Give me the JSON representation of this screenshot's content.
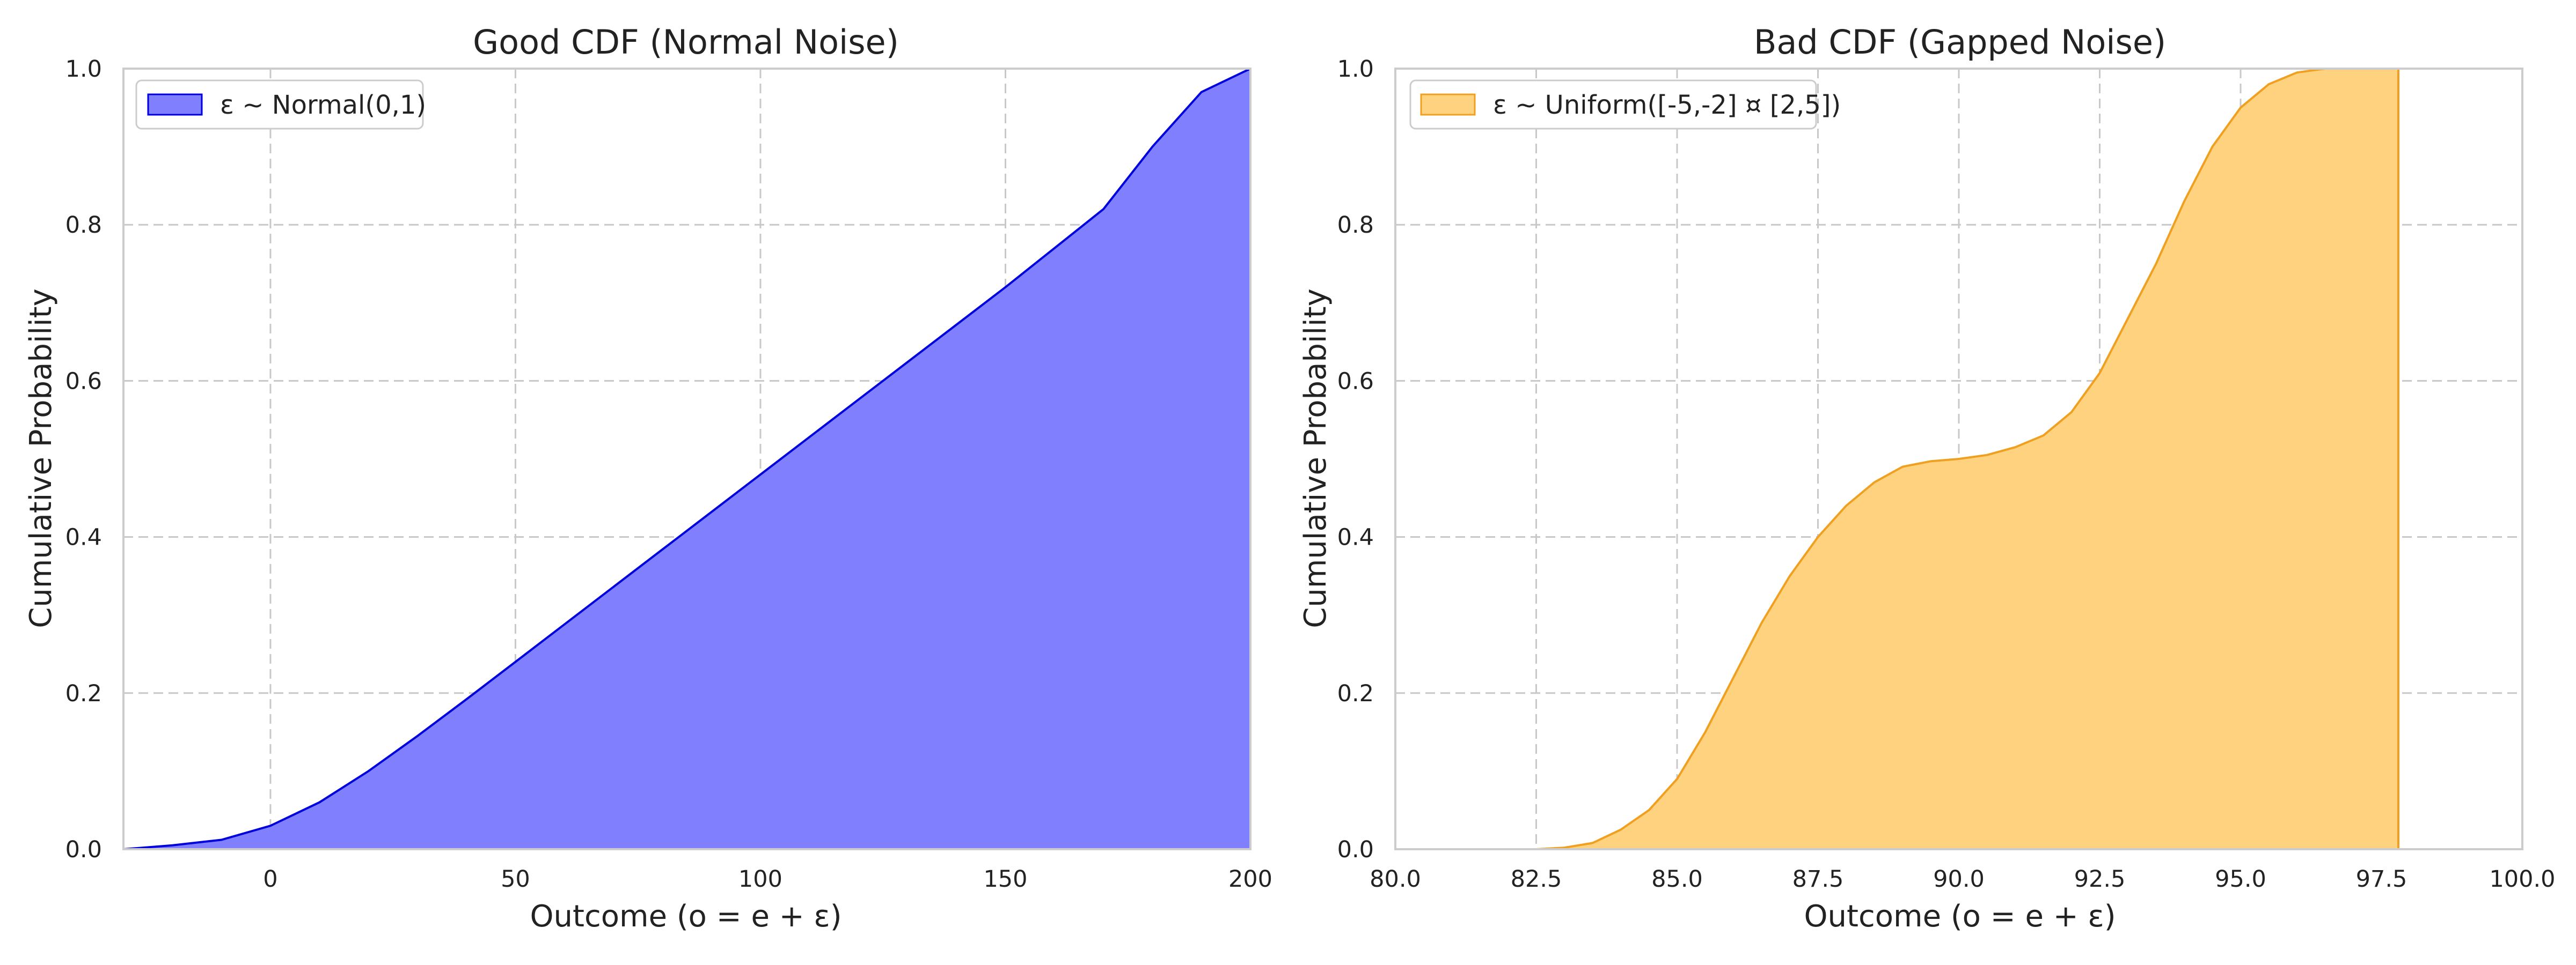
{
  "chart_data": [
    {
      "type": "area",
      "title": "Good CDF (Normal Noise)",
      "xlabel": "Outcome (o = e + ε)",
      "ylabel": "Cumulative Probability",
      "xlim": [
        -30,
        200
      ],
      "ylim": [
        0,
        1
      ],
      "xticks": [
        "0",
        "50",
        "100",
        "150",
        "200"
      ],
      "yticks": [
        "0.0",
        "0.2",
        "0.4",
        "0.6",
        "0.8",
        "1.0"
      ],
      "grid": true,
      "legend_position": "top-left",
      "series": [
        {
          "name": "ε ~ Normal(0,1)",
          "fill_color": "#8080ff",
          "line_color": "#0000dd",
          "x": [
            -30,
            -20,
            -10,
            0,
            10,
            20,
            30,
            40,
            50,
            60,
            70,
            80,
            90,
            100,
            110,
            120,
            130,
            140,
            150,
            160,
            170,
            180,
            190,
            200
          ],
          "y": [
            0.0,
            0.005,
            0.012,
            0.03,
            0.06,
            0.1,
            0.145,
            0.192,
            0.24,
            0.288,
            0.336,
            0.384,
            0.432,
            0.48,
            0.528,
            0.576,
            0.624,
            0.672,
            0.72,
            0.77,
            0.82,
            0.9,
            0.97,
            1.0
          ]
        }
      ]
    },
    {
      "type": "area",
      "title": "Bad CDF (Gapped Noise)",
      "xlabel": "Outcome (o = e + ε)",
      "ylabel": "Cumulative Probability",
      "xlim": [
        80,
        100
      ],
      "ylim": [
        0,
        1
      ],
      "xticks": [
        "80.0",
        "82.5",
        "85.0",
        "87.5",
        "90.0",
        "92.5",
        "95.0",
        "97.5",
        "100.0"
      ],
      "yticks": [
        "0.0",
        "0.2",
        "0.4",
        "0.6",
        "0.8",
        "1.0"
      ],
      "grid": true,
      "legend_position": "top-left",
      "series": [
        {
          "name": "ε ~ Uniform([-5,-2] ¤ [2,5])",
          "fill_color": "#ffd27f",
          "line_color": "#f0a020",
          "x": [
            80.0,
            82.5,
            83.0,
            83.5,
            84.0,
            84.5,
            85.0,
            85.5,
            86.0,
            86.5,
            87.0,
            87.5,
            88.0,
            88.5,
            89.0,
            89.5,
            90.0,
            90.5,
            91.0,
            91.5,
            92.0,
            92.5,
            93.0,
            93.5,
            94.0,
            94.5,
            95.0,
            95.5,
            96.0,
            96.5,
            97.0,
            97.5,
            97.8
          ],
          "y": [
            0.0,
            0.0,
            0.002,
            0.008,
            0.025,
            0.05,
            0.09,
            0.15,
            0.22,
            0.29,
            0.35,
            0.4,
            0.44,
            0.47,
            0.49,
            0.497,
            0.5,
            0.505,
            0.515,
            0.53,
            0.56,
            0.61,
            0.68,
            0.75,
            0.83,
            0.9,
            0.95,
            0.98,
            0.995,
            1.0,
            1.0,
            1.0,
            1.0
          ]
        }
      ]
    }
  ]
}
